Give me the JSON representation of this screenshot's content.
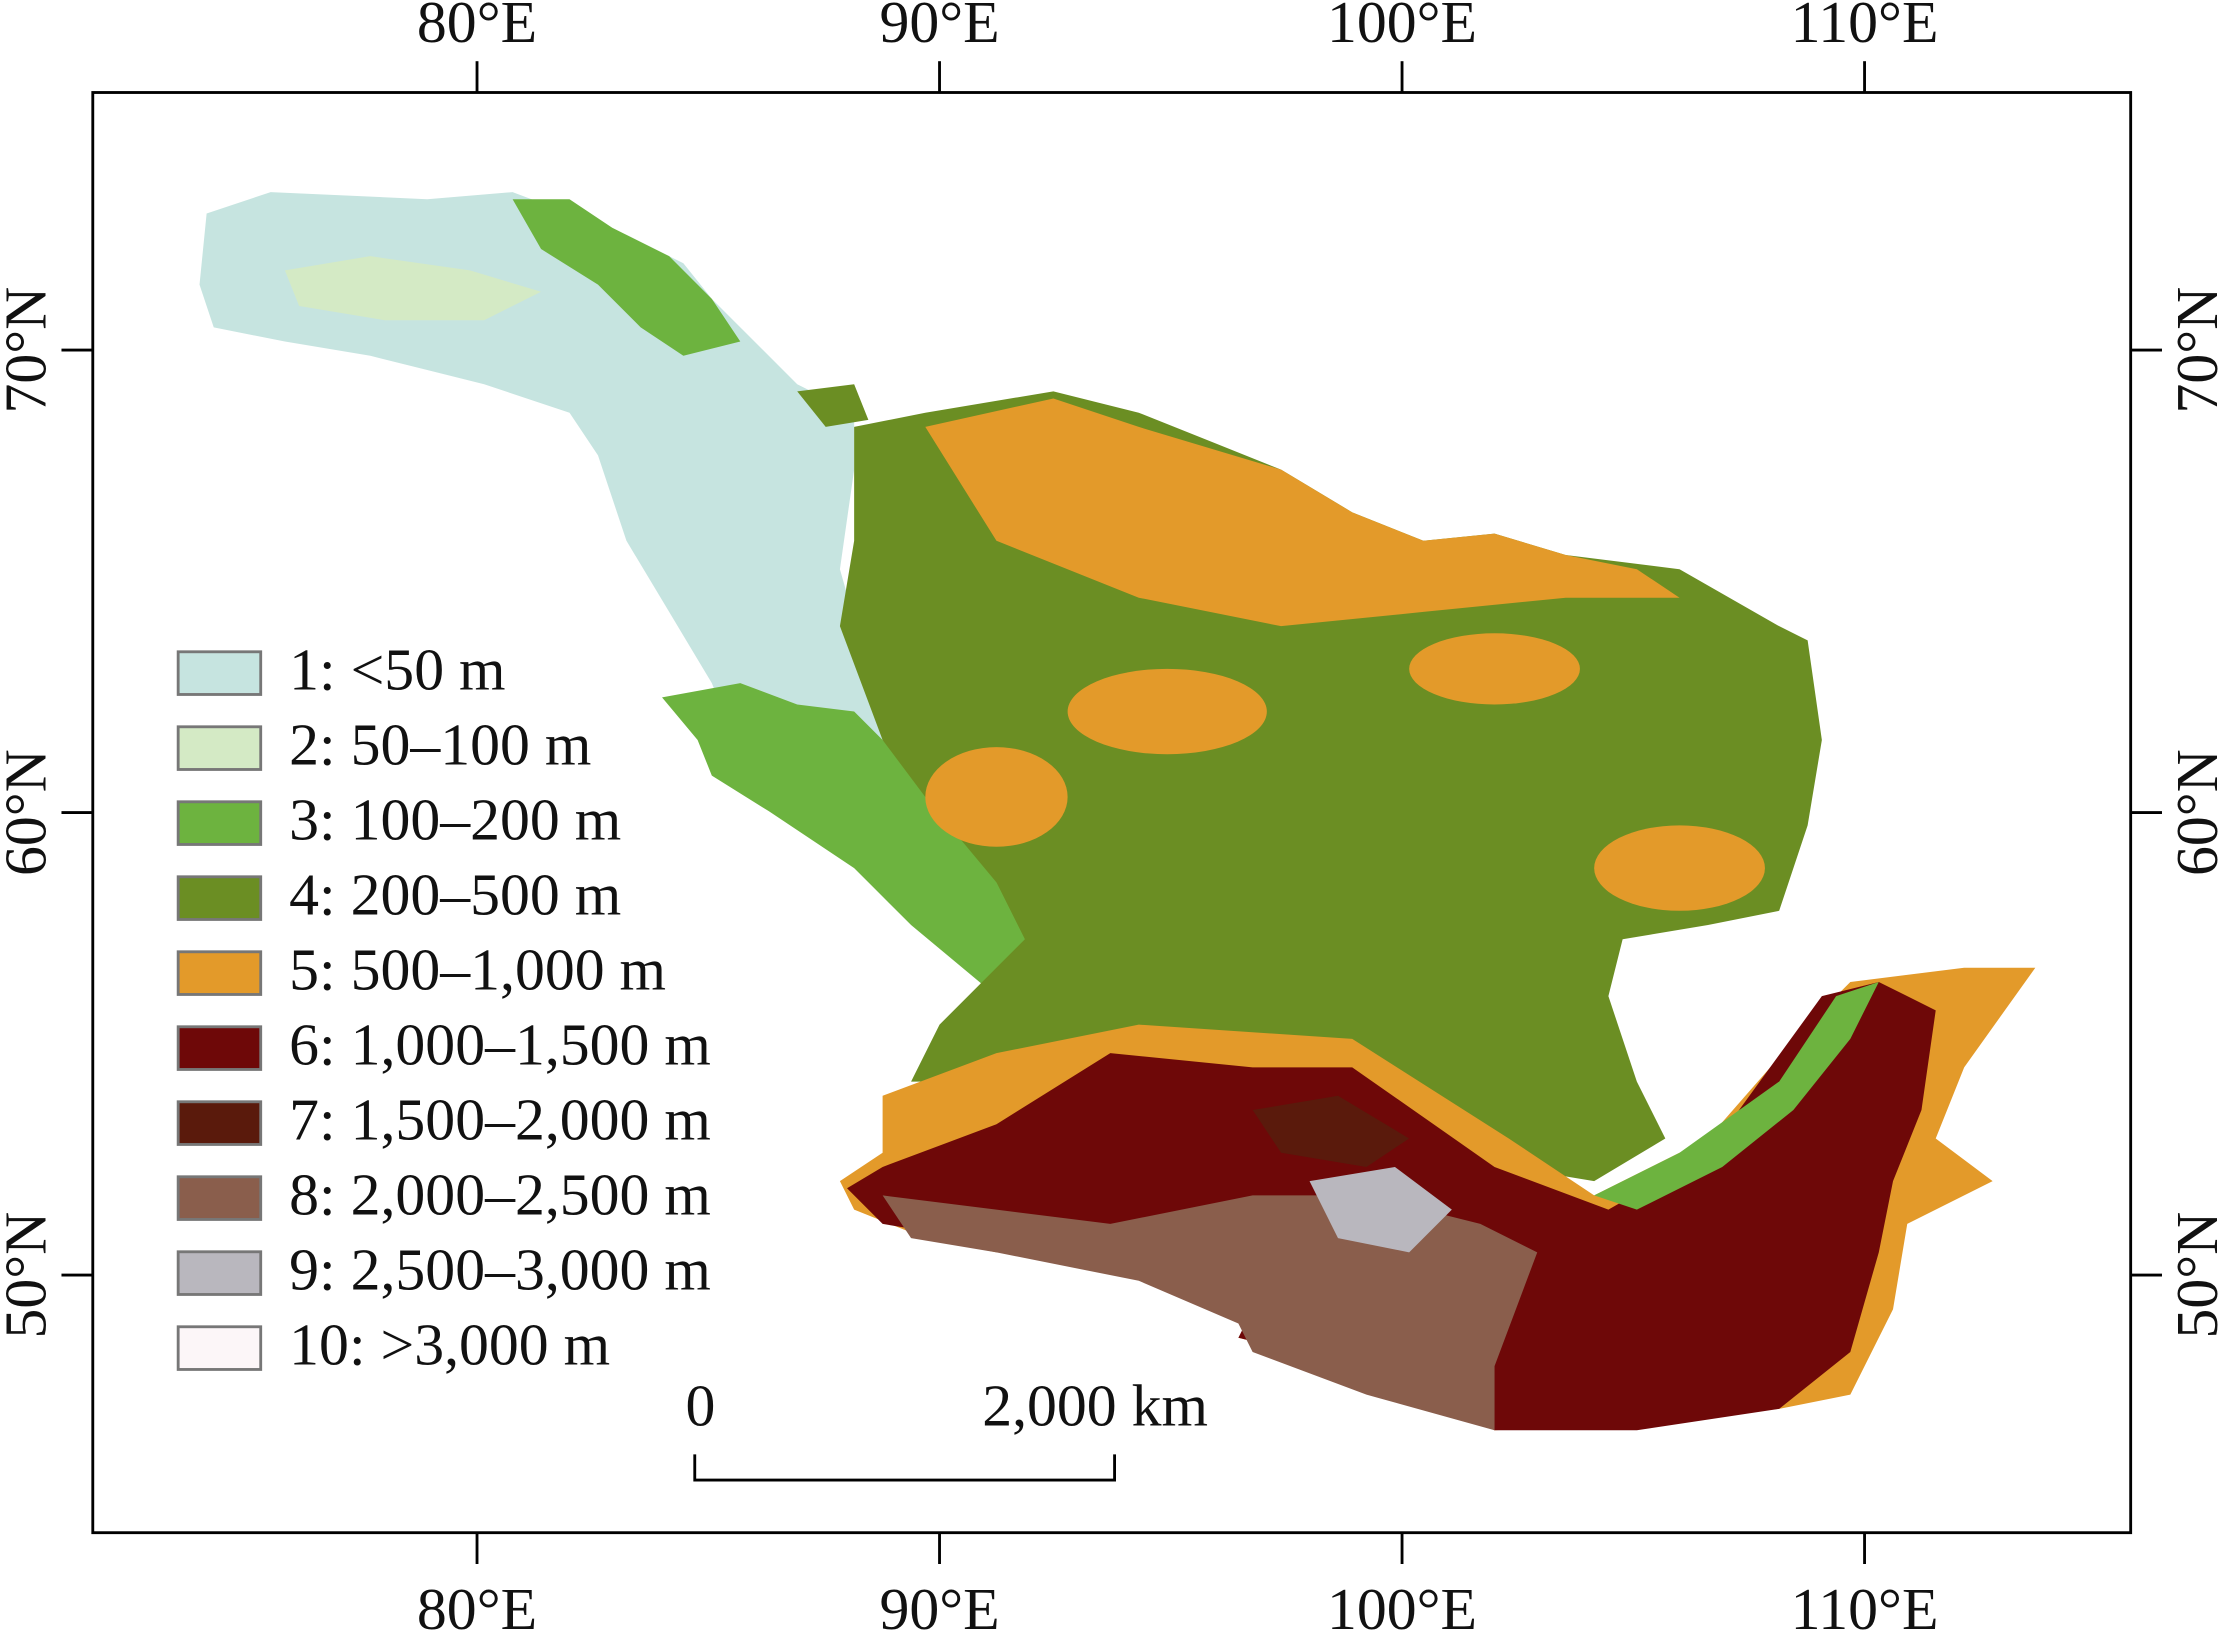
{
  "map": {
    "lon_ticks": [
      "80°E",
      "90°E",
      "100°E",
      "110°E"
    ],
    "lat_ticks": [
      "70°N",
      "60°N",
      "50°N"
    ],
    "legend": [
      {
        "label": "1: <50 m",
        "color": "#c6e4e0"
      },
      {
        "label": "2: 50–100 m",
        "color": "#d4eac5"
      },
      {
        "label": "3: 100–200 m",
        "color": "#6db33f"
      },
      {
        "label": "4: 200–500 m",
        "color": "#6b8e23"
      },
      {
        "label": "5: 500–1,000 m",
        "color": "#e39a2a"
      },
      {
        "label": "6: 1,000–1,500 m",
        "color": "#6e0808"
      },
      {
        "label": "7: 1,500–2,000 m",
        "color": "#5a1a0c"
      },
      {
        "label": "8: 2,000–2,500 m",
        "color": "#8a5e4c"
      },
      {
        "label": "9: 2,500–3,000 m",
        "color": "#b9b7be"
      },
      {
        "label": "10: >3,000 m",
        "color": "#fcf6f8"
      }
    ],
    "scale_bar": {
      "start": "0",
      "end": "2,000 km"
    }
  }
}
